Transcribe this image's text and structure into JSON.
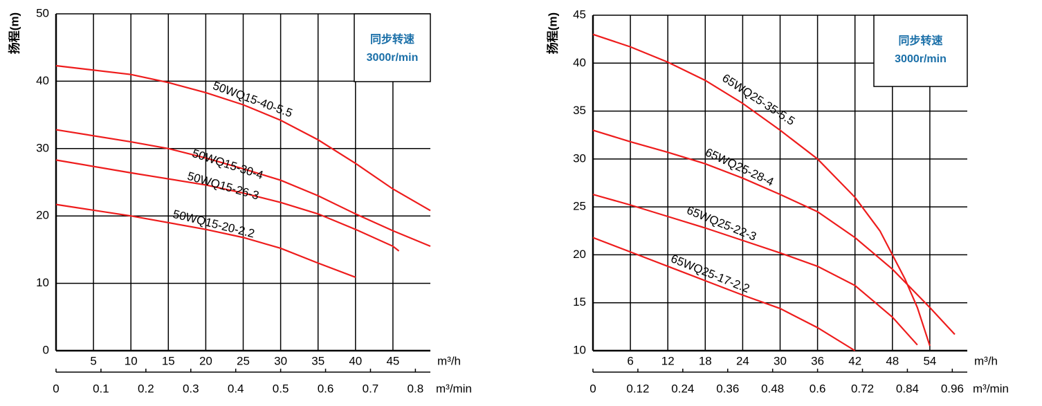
{
  "chart_data": [
    {
      "type": "line",
      "y_label": "扬程(m)",
      "x_label": "m³/h",
      "x2_label": "m³/min",
      "annotation": [
        "同步转速",
        "3000r/min"
      ],
      "xlim": [
        0,
        50
      ],
      "xticks": [
        5,
        10,
        15,
        20,
        25,
        30,
        35,
        40,
        45
      ],
      "x2lim": [
        0,
        0.8333
      ],
      "x2ticks": [
        0,
        0.1,
        0.2,
        0.3,
        0.4,
        0.5,
        0.6,
        0.7,
        0.8
      ],
      "ylim": [
        0,
        50
      ],
      "yticks": [
        0,
        10,
        20,
        30,
        40,
        50
      ],
      "grid": true,
      "series": [
        {
          "name": "50WQ15-40-5.5",
          "color": "#ee1c1c",
          "x": [
            0,
            10,
            15,
            20,
            25,
            30,
            35,
            40,
            45,
            50
          ],
          "values": [
            42.3,
            41,
            39.8,
            38.3,
            36.5,
            34.2,
            31.3,
            27.8,
            24,
            20.8
          ]
        },
        {
          "name": "50WQ15-30-4",
          "color": "#ee1c1c",
          "x": [
            0,
            10,
            15,
            20,
            25,
            30,
            35,
            40,
            45,
            50
          ],
          "values": [
            32.8,
            31,
            30,
            28.6,
            27,
            25.3,
            23,
            20.3,
            17.8,
            15.5
          ]
        },
        {
          "name": "50WQ15-26-3",
          "color": "#ee1c1c",
          "x": [
            0,
            10,
            20,
            25,
            30,
            35,
            40,
            45,
            45.8
          ],
          "values": [
            28.3,
            26.4,
            24.6,
            23.4,
            22,
            20.3,
            18,
            15.5,
            14.8
          ]
        },
        {
          "name": "50WQ15-20-2.2",
          "color": "#ee1c1c",
          "x": [
            0,
            10,
            20,
            25,
            30,
            35,
            40
          ],
          "values": [
            21.7,
            20,
            18,
            16.8,
            15.2,
            13,
            10.9
          ]
        }
      ]
    },
    {
      "type": "line",
      "y_label": "扬程(m)",
      "x_label": "m³/h",
      "x2_label": "m³/min",
      "annotation": [
        "同步转速",
        "3000r/min"
      ],
      "xlim": [
        0,
        60
      ],
      "xticks": [
        6,
        12,
        18,
        24,
        30,
        36,
        42,
        48,
        54
      ],
      "x2lim": [
        0,
        1
      ],
      "x2ticks": [
        0,
        0.12,
        0.24,
        0.36,
        0.48,
        0.6,
        0.72,
        0.84,
        0.96
      ],
      "ylim": [
        10,
        45
      ],
      "yticks": [
        10,
        15,
        20,
        25,
        30,
        35,
        40,
        45
      ],
      "grid": true,
      "series": [
        {
          "name": "65WQ25-35-5.5",
          "color": "#ee1c1c",
          "x": [
            0,
            6,
            12,
            18,
            24,
            30,
            36,
            42,
            46,
            50,
            52,
            53.5,
            54
          ],
          "values": [
            43,
            41.7,
            40.1,
            38.2,
            35.8,
            33,
            30,
            26,
            22.5,
            17.5,
            14.5,
            11.5,
            10.5
          ]
        },
        {
          "name": "65WQ25-28-4",
          "color": "#ee1c1c",
          "x": [
            0,
            6,
            12,
            18,
            24,
            30,
            36,
            42,
            48,
            54,
            58
          ],
          "values": [
            33,
            31.8,
            30.7,
            29.5,
            28,
            26.3,
            24.5,
            21.8,
            18.5,
            14.5,
            11.7
          ]
        },
        {
          "name": "65WQ25-22-3",
          "color": "#ee1c1c",
          "x": [
            0,
            6,
            12,
            18,
            24,
            30,
            36,
            42,
            48,
            52
          ],
          "values": [
            26.3,
            25.2,
            24,
            22.8,
            21.5,
            20.2,
            18.8,
            16.8,
            13.5,
            10.6
          ]
        },
        {
          "name": "65WQ25-17-2.2",
          "color": "#ee1c1c",
          "x": [
            0,
            6,
            12,
            18,
            24,
            30,
            36,
            42
          ],
          "values": [
            21.8,
            20.3,
            18.8,
            17.3,
            15.8,
            14.4,
            12.4,
            10
          ]
        }
      ]
    }
  ]
}
